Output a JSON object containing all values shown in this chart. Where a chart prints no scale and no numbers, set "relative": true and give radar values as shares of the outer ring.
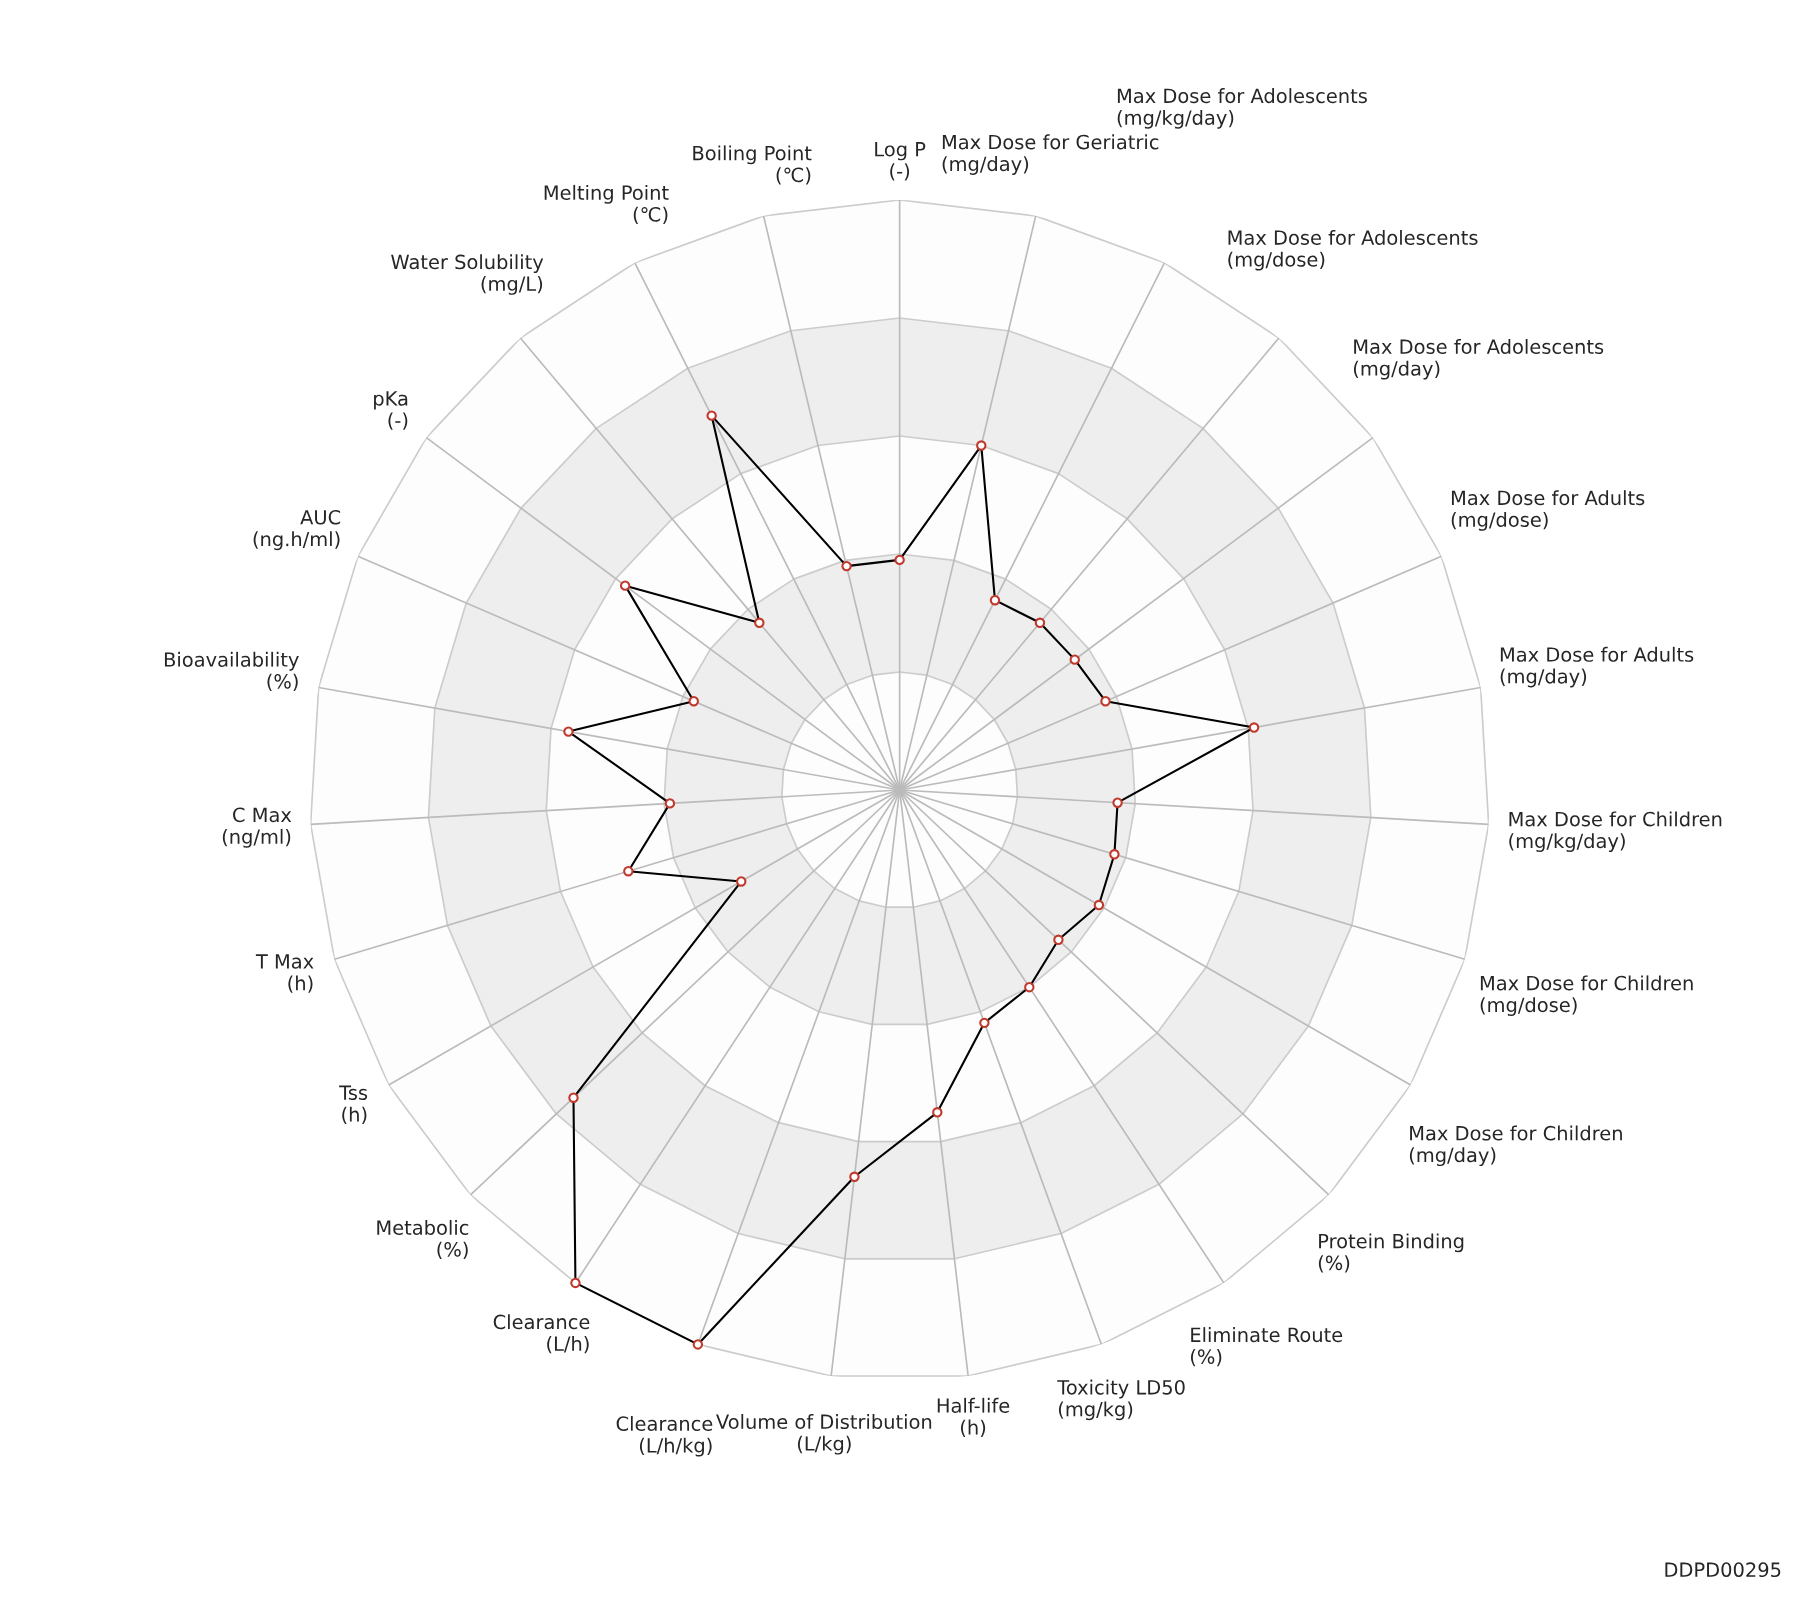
{
  "chart_data": {
    "type": "radar",
    "relative": true,
    "grid": true,
    "marker": "circle",
    "categories": [
      "Log P\n(-)",
      "Max Dose for Geriatric\n(mg/day)",
      "Max Dose for Adolescents\n(mg/kg/day)",
      "Max Dose for Adolescents\n(mg/dose)",
      "Max Dose for Adolescents\n(mg/day)",
      "Max Dose for Adults\n(mg/dose)",
      "Max Dose for Adults\n(mg/day)",
      "Max Dose for Children\n(mg/kg/day)",
      "Max Dose for Children\n(mg/dose)",
      "Max Dose for Children\n(mg/day)",
      "Protein Binding\n(%)",
      "Eliminate Route\n(%)",
      "Toxicity LD50\n(mg/kg)",
      "Half-life\n(h)",
      "Volume of Distribution\n(L/kg)",
      "Clearance\n(L/h/kg)",
      "Clearance\n(L/h)",
      "Metabolic\n(%)",
      "Tss\n(h)",
      "T Max\n(h)",
      "C Max\n(ng/ml)",
      "Bioavailability\n(%)",
      "AUC\n(ng.h/ml)",
      "pKa\n(-)",
      "Water Solubility\n(mg/L)",
      "Melting Point\n(℃)",
      "Boiling Point\n(℃)"
    ],
    "series": [
      {
        "color": "#000000",
        "values": [
          0.39,
          0.6,
          0.36,
          0.37,
          0.37,
          0.38,
          0.61,
          0.37,
          0.38,
          0.39,
          0.37,
          0.4,
          0.42,
          0.55,
          0.66,
          1.0,
          1.0,
          0.76,
          0.31,
          0.48,
          0.39,
          0.57,
          0.38,
          0.58,
          0.37,
          0.71,
          0.39
        ]
      }
    ],
    "annotations": [
      "DDPD00295"
    ]
  }
}
